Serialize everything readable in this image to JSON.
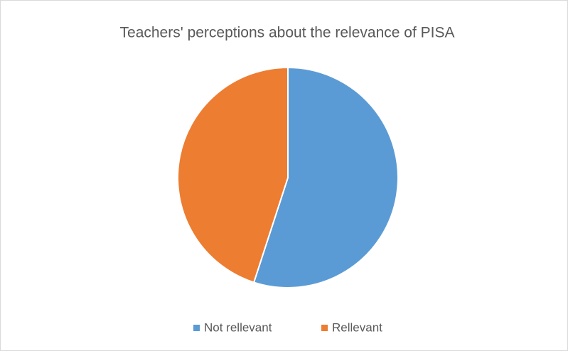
{
  "chart_data": {
    "type": "pie",
    "title": "Teachers' perceptions about the relevance of PISA",
    "categories": [
      "Not rellevant",
      "Rellevant"
    ],
    "values": [
      55,
      45
    ],
    "colors": [
      "#5b9bd5",
      "#ed7d31"
    ],
    "legend": "bottom"
  }
}
